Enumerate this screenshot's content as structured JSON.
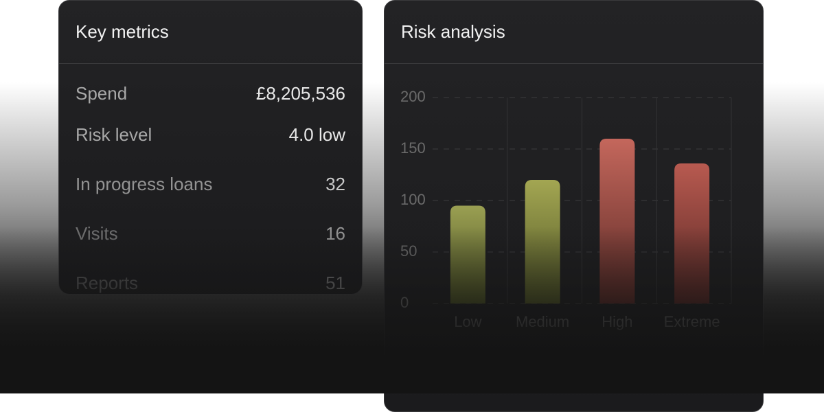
{
  "metrics": {
    "title": "Key metrics",
    "rows": [
      {
        "label": "Spend",
        "value": "£8,205,536"
      },
      {
        "label": "Risk level",
        "value": "4.0 low"
      },
      {
        "label": "In progress loans",
        "value": "32"
      },
      {
        "label": "Visits",
        "value": "16"
      },
      {
        "label": "Reports",
        "value": "51"
      }
    ]
  },
  "risk": {
    "title": "Risk analysis",
    "chart": {
      "type": "bar",
      "categories": [
        "Low",
        "Medium",
        "High",
        "Extreme"
      ],
      "values": [
        95,
        120,
        160,
        136
      ],
      "colors": [
        [
          "#9a9f52",
          "#4b5222"
        ],
        [
          "#a3a652",
          "#4f5524"
        ],
        [
          "#c4675c",
          "#5a2925"
        ],
        [
          "#b85a50",
          "#552623"
        ]
      ],
      "ylim": [
        0,
        200
      ],
      "yticks": [
        0,
        50,
        100,
        150,
        200
      ],
      "grid": true
    }
  }
}
